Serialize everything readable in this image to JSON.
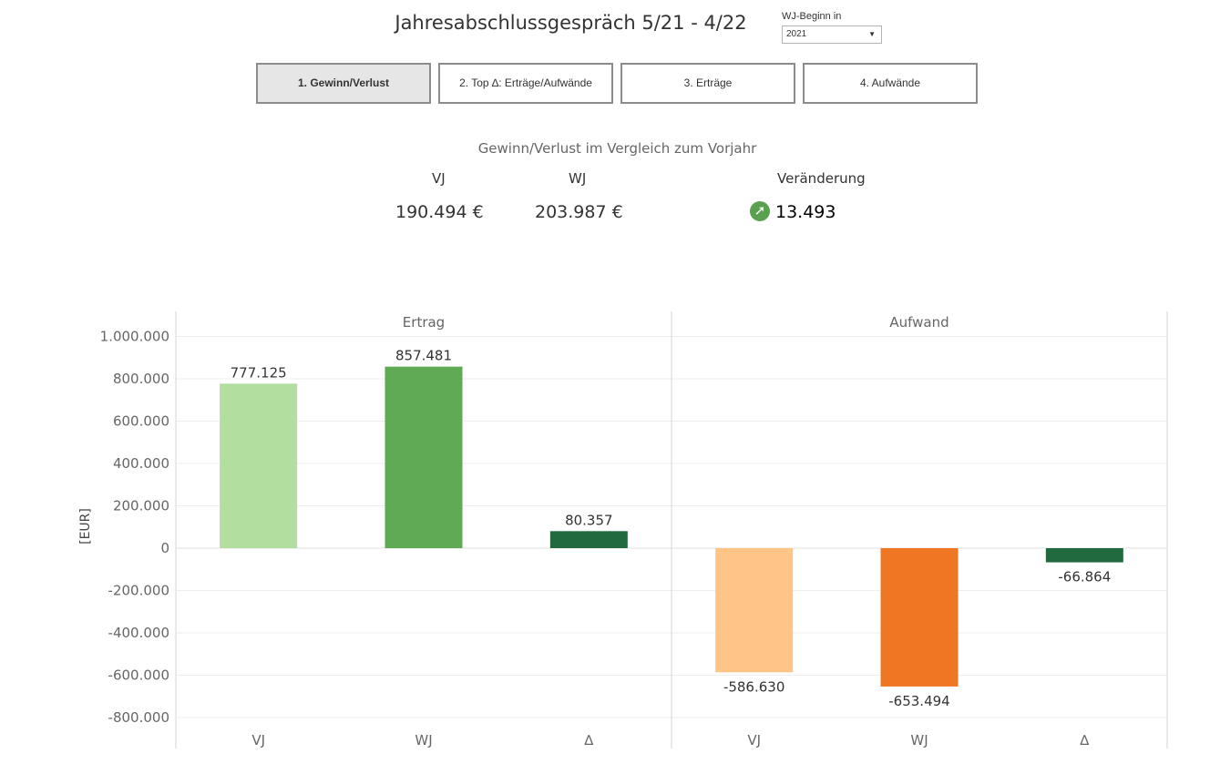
{
  "header": {
    "title": "Jahresabschlussgespräch 5/21 - 4/22",
    "param_label": "WJ-Beginn in",
    "param_value": "2021"
  },
  "tabs": [
    {
      "label": "1. Gewinn/Verlust",
      "active": true
    },
    {
      "label": "2. Top ∆: Erträge/Aufwände",
      "active": false
    },
    {
      "label": "3. Erträge",
      "active": false
    },
    {
      "label": "4. Aufwände",
      "active": false
    }
  ],
  "kpi": {
    "title": "Gewinn/Verlust im Vergleich zum Vorjahr",
    "vj_label": "VJ",
    "wj_label": "WJ",
    "change_label": "Veränderung",
    "vj_value": "190.494 €",
    "wj_value": "203.987 €",
    "change_value": "13.493",
    "change_icon": "arrow-up-right-icon",
    "change_color": "#59a14f"
  },
  "chart_data": {
    "type": "bar",
    "ylabel": "[EUR]",
    "ylim": [
      -850000,
      1050000
    ],
    "yticks": [
      1000000,
      800000,
      600000,
      400000,
      200000,
      0,
      -200000,
      -400000,
      -600000,
      -800000
    ],
    "ytick_labels": [
      "1.000.000",
      "800.000",
      "600.000",
      "400.000",
      "200.000",
      "0",
      "-200.000",
      "-400.000",
      "-600.000",
      "-800.000"
    ],
    "panels": [
      {
        "name": "Ertrag",
        "categories": [
          "VJ",
          "WJ",
          "∆"
        ],
        "values": [
          777125,
          857481,
          80357
        ],
        "labels": [
          "777.125",
          "857.481",
          "80.357"
        ],
        "colors": [
          "#b2df9f",
          "#60aa55",
          "#216a3f"
        ]
      },
      {
        "name": "Aufwand",
        "categories": [
          "VJ",
          "WJ",
          "∆"
        ],
        "values": [
          -586630,
          -653494,
          -66864
        ],
        "labels": [
          "-586.630",
          "-653.494",
          "-66.864"
        ],
        "colors": [
          "#fec586",
          "#ef7723",
          "#216a3f"
        ]
      }
    ]
  }
}
